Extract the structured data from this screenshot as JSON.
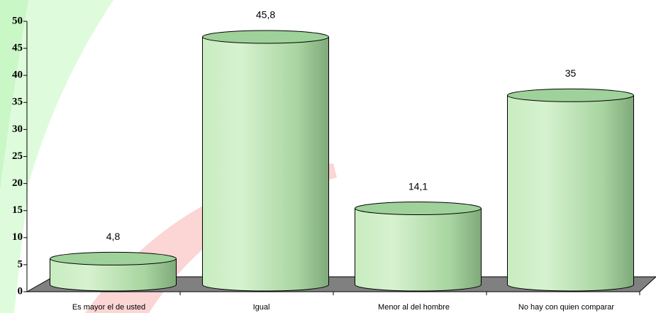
{
  "chart_data": {
    "type": "bar",
    "categories": [
      "Es mayor el de usted",
      "Igual",
      "Menor al del hombre",
      "No hay con quien comparar"
    ],
    "values": [
      4.8,
      45.8,
      14.1,
      35
    ],
    "value_labels": [
      "4,8",
      "45,8",
      "14,1",
      "35"
    ],
    "color": "#a8d5a0",
    "ylim": [
      0,
      50
    ],
    "yticks": [
      0,
      5,
      10,
      15,
      20,
      25,
      30,
      35,
      40,
      45,
      50
    ]
  }
}
